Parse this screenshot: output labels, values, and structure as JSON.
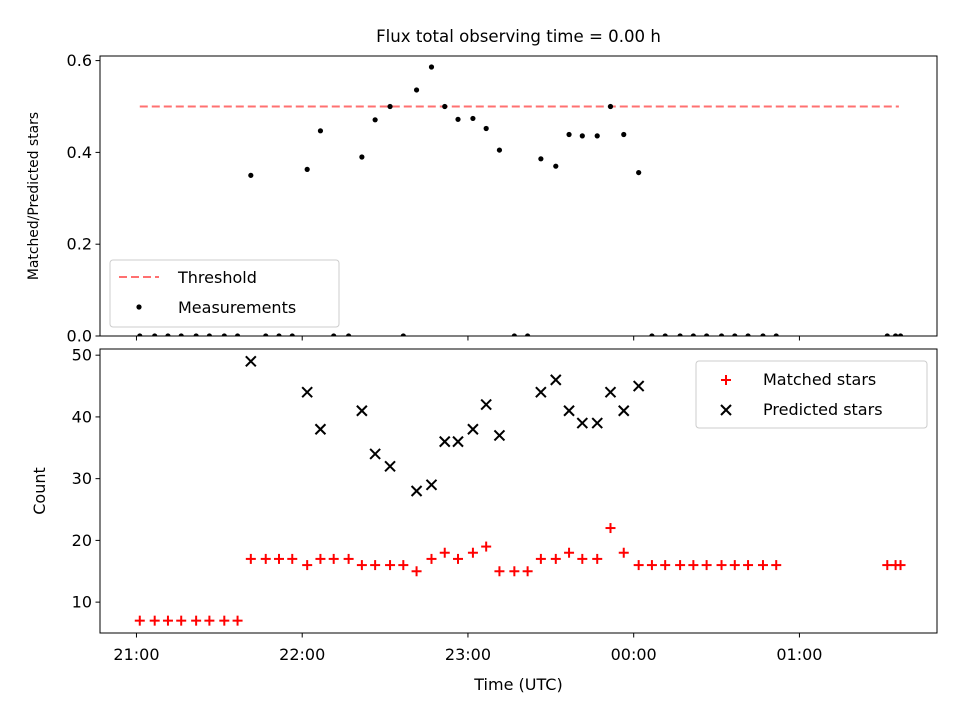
{
  "chart_data": [
    {
      "type": "scatter",
      "title": "Flux total observing time = 0.00 h",
      "ylabel": "Matched/Predicted stars",
      "xlabel": "",
      "x_unit": "hours since 00:00 UTC (wrapping past 24)",
      "xlim": [
        20.78,
        25.83
      ],
      "ylim": [
        0.0,
        0.61
      ],
      "yticks": [
        0.0,
        0.2,
        0.4,
        0.6
      ],
      "ytick_labels": [
        "0.0",
        "0.2",
        "0.4",
        "0.6"
      ],
      "grid": false,
      "legend": "lower-left",
      "threshold": {
        "name": "Threshold",
        "value": 0.5,
        "x_range": [
          21.02,
          25.6
        ],
        "color": "#ff7070"
      },
      "series": [
        {
          "name": "Measurements",
          "color": "#000000",
          "marker": "dot",
          "points": [
            [
              21.02,
              0.0
            ],
            [
              21.11,
              0.0
            ],
            [
              21.19,
              0.0
            ],
            [
              21.27,
              0.0
            ],
            [
              21.36,
              0.0
            ],
            [
              21.44,
              0.0
            ],
            [
              21.53,
              0.0
            ],
            [
              21.61,
              0.0
            ],
            [
              21.69,
              0.35
            ],
            [
              21.78,
              0.0
            ],
            [
              21.86,
              0.0
            ],
            [
              21.94,
              0.0
            ],
            [
              22.03,
              0.363
            ],
            [
              22.11,
              0.447
            ],
            [
              22.19,
              0.0
            ],
            [
              22.28,
              0.0
            ],
            [
              22.36,
              0.39
            ],
            [
              22.44,
              0.471
            ],
            [
              22.53,
              0.5
            ],
            [
              22.61,
              0.0
            ],
            [
              22.69,
              0.536
            ],
            [
              22.78,
              0.586
            ],
            [
              22.86,
              0.5
            ],
            [
              22.94,
              0.472
            ],
            [
              23.03,
              0.474
            ],
            [
              23.11,
              0.452
            ],
            [
              23.19,
              0.405
            ],
            [
              23.28,
              0.0
            ],
            [
              23.36,
              0.0
            ],
            [
              23.44,
              0.386
            ],
            [
              23.53,
              0.37
            ],
            [
              23.61,
              0.439
            ],
            [
              23.69,
              0.436
            ],
            [
              23.78,
              0.436
            ],
            [
              23.86,
              0.5
            ],
            [
              23.94,
              0.439
            ],
            [
              24.03,
              0.356
            ],
            [
              24.11,
              0.0
            ],
            [
              24.19,
              0.0
            ],
            [
              24.28,
              0.0
            ],
            [
              24.36,
              0.0
            ],
            [
              24.44,
              0.0
            ],
            [
              24.53,
              0.0
            ],
            [
              24.61,
              0.0
            ],
            [
              24.69,
              0.0
            ],
            [
              24.78,
              0.0
            ],
            [
              24.86,
              0.0
            ],
            [
              25.53,
              0.0
            ],
            [
              25.58,
              0.0
            ],
            [
              25.61,
              0.0
            ]
          ]
        }
      ]
    },
    {
      "type": "scatter",
      "title": "",
      "ylabel": "Count",
      "xlabel": "Time (UTC)",
      "x_unit": "hours since 00:00 UTC (wrapping past 24)",
      "xlim": [
        20.78,
        25.83
      ],
      "ylim": [
        5.0,
        51.0
      ],
      "yticks": [
        10,
        20,
        30,
        40,
        50
      ],
      "ytick_labels": [
        "10",
        "20",
        "30",
        "40",
        "50"
      ],
      "xticks": [
        21,
        22,
        23,
        24,
        25
      ],
      "xtick_labels": [
        "21:00",
        "22:00",
        "23:00",
        "00:00",
        "01:00"
      ],
      "grid": false,
      "legend": "top-right",
      "series": [
        {
          "name": "Matched stars",
          "color": "#ff0000",
          "marker": "plus",
          "points": [
            [
              21.02,
              7
            ],
            [
              21.11,
              7
            ],
            [
              21.19,
              7
            ],
            [
              21.27,
              7
            ],
            [
              21.36,
              7
            ],
            [
              21.44,
              7
            ],
            [
              21.53,
              7
            ],
            [
              21.61,
              7
            ],
            [
              21.69,
              17
            ],
            [
              21.78,
              17
            ],
            [
              21.86,
              17
            ],
            [
              21.94,
              17
            ],
            [
              22.03,
              16
            ],
            [
              22.11,
              17
            ],
            [
              22.19,
              17
            ],
            [
              22.28,
              17
            ],
            [
              22.36,
              16
            ],
            [
              22.44,
              16
            ],
            [
              22.53,
              16
            ],
            [
              22.61,
              16
            ],
            [
              22.69,
              15
            ],
            [
              22.78,
              17
            ],
            [
              22.86,
              18
            ],
            [
              22.94,
              17
            ],
            [
              23.03,
              18
            ],
            [
              23.11,
              19
            ],
            [
              23.19,
              15
            ],
            [
              23.28,
              15
            ],
            [
              23.36,
              15
            ],
            [
              23.44,
              17
            ],
            [
              23.53,
              17
            ],
            [
              23.61,
              18
            ],
            [
              23.69,
              17
            ],
            [
              23.78,
              17
            ],
            [
              23.86,
              22
            ],
            [
              23.94,
              18
            ],
            [
              24.03,
              16
            ],
            [
              24.11,
              16
            ],
            [
              24.19,
              16
            ],
            [
              24.28,
              16
            ],
            [
              24.36,
              16
            ],
            [
              24.44,
              16
            ],
            [
              24.53,
              16
            ],
            [
              24.61,
              16
            ],
            [
              24.69,
              16
            ],
            [
              24.78,
              16
            ],
            [
              24.86,
              16
            ],
            [
              25.53,
              16
            ],
            [
              25.58,
              16
            ],
            [
              25.61,
              16
            ]
          ]
        },
        {
          "name": "Predicted stars",
          "color": "#000000",
          "marker": "x",
          "points": [
            [
              21.69,
              49
            ],
            [
              22.03,
              44
            ],
            [
              22.11,
              38
            ],
            [
              22.36,
              41
            ],
            [
              22.44,
              34
            ],
            [
              22.53,
              32
            ],
            [
              22.69,
              28
            ],
            [
              22.78,
              29
            ],
            [
              22.86,
              36
            ],
            [
              22.94,
              36
            ],
            [
              23.03,
              38
            ],
            [
              23.11,
              42
            ],
            [
              23.19,
              37
            ],
            [
              23.44,
              44
            ],
            [
              23.53,
              46
            ],
            [
              23.61,
              41
            ],
            [
              23.69,
              39
            ],
            [
              23.78,
              39
            ],
            [
              23.86,
              44
            ],
            [
              23.94,
              41
            ],
            [
              24.03,
              45
            ]
          ]
        }
      ]
    }
  ]
}
